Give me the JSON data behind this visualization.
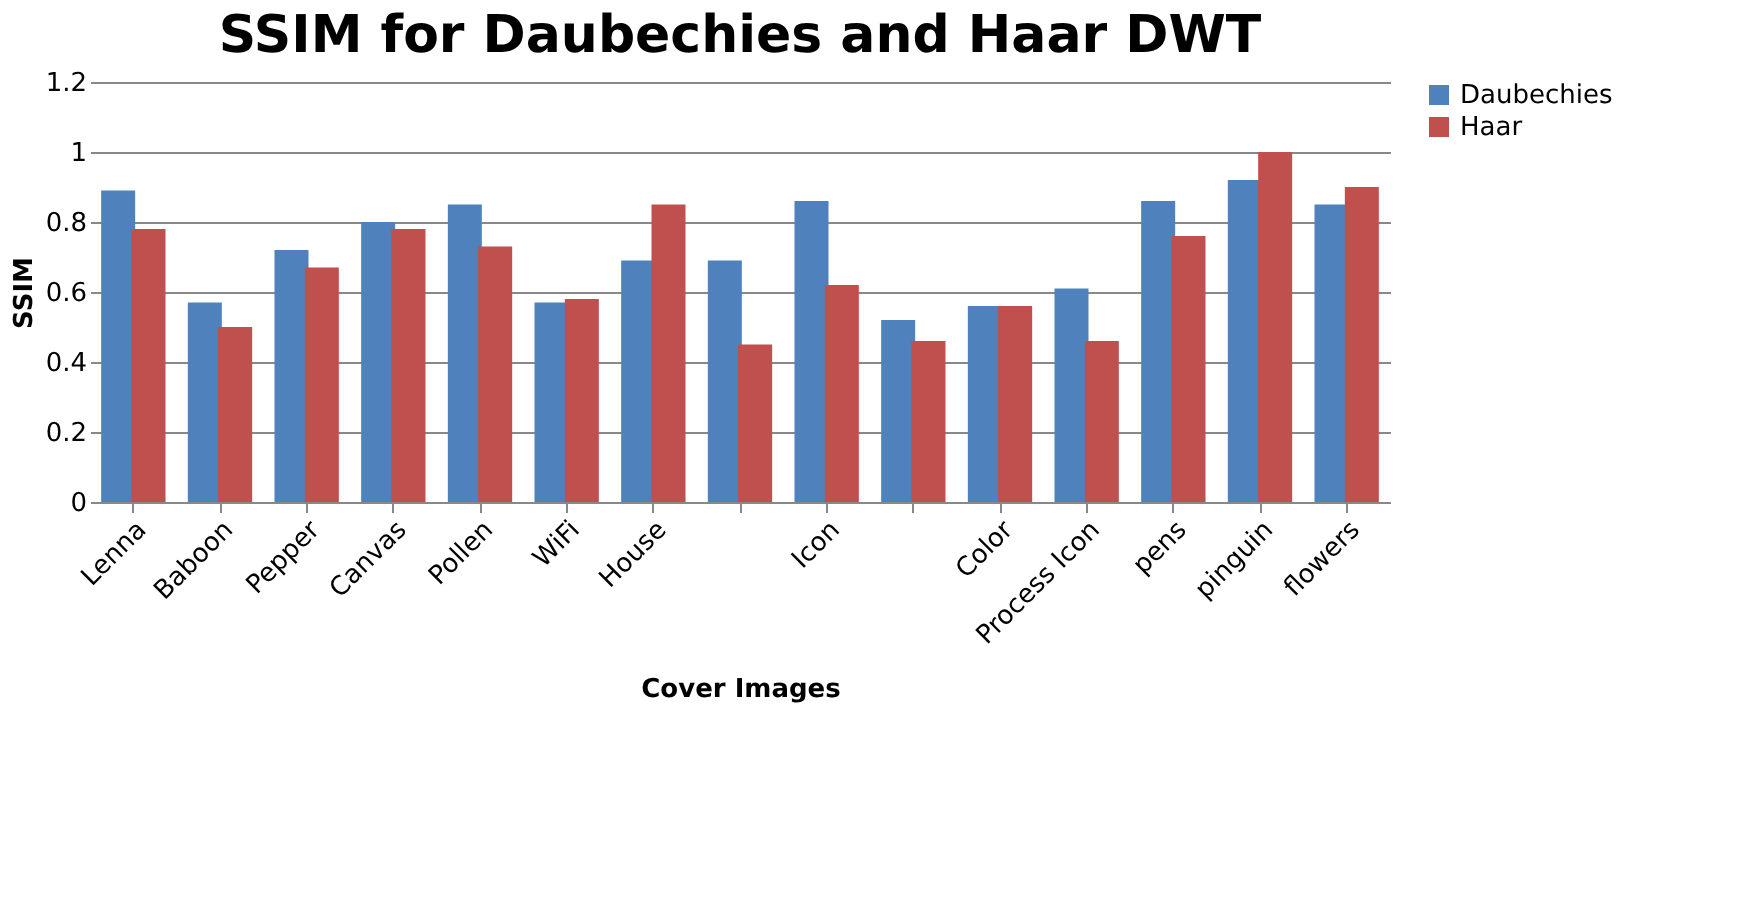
{
  "chart_data": {
    "type": "bar",
    "title": "SSIM for Daubechies and Haar DWT",
    "xlabel": "Cover Images",
    "ylabel": "SSIM",
    "categories": [
      "Lenna",
      "Baboon",
      "Pepper",
      "Canvas",
      "Pollen",
      "WiFi",
      "House",
      null,
      "Icon",
      null,
      "Color",
      "Process Icon",
      "pens",
      "pinguin",
      "flowers"
    ],
    "series": [
      {
        "name": "Daubechies",
        "color": "#4f81bd",
        "values": [
          0.89,
          0.57,
          0.72,
          0.8,
          0.85,
          0.57,
          0.69,
          0.69,
          0.86,
          0.52,
          0.56,
          0.61,
          0.86,
          0.92,
          0.85
        ]
      },
      {
        "name": "Haar",
        "color": "#c0504d",
        "values": [
          0.78,
          0.5,
          0.67,
          0.78,
          0.73,
          0.58,
          0.85,
          0.45,
          0.62,
          0.46,
          0.56,
          0.46,
          0.76,
          1.0,
          0.9
        ]
      }
    ],
    "ylim": [
      0,
      1.2
    ],
    "yticks": [
      0,
      0.2,
      0.4,
      0.6,
      0.8,
      1,
      1.2
    ],
    "grid": "y",
    "legend": "right"
  }
}
